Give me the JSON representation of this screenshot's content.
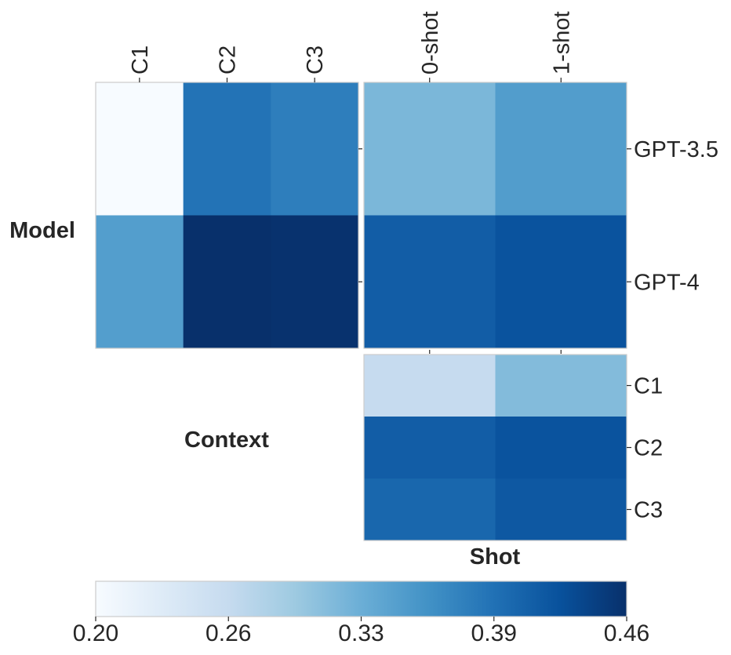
{
  "chart_data": [
    {
      "type": "heatmap",
      "id": "model_vs_context",
      "x_categories": [
        "C1",
        "C2",
        "C3"
      ],
      "y_categories": [
        "GPT-3.5",
        "GPT-4"
      ],
      "values": [
        [
          0.2,
          0.393,
          0.382
        ],
        [
          0.349,
          0.46,
          0.458
        ]
      ],
      "ylabel": "Model",
      "xlabel": "Context",
      "xtick_position": "top"
    },
    {
      "type": "heatmap",
      "id": "model_vs_shot",
      "x_categories": [
        "0-shot",
        "1-shot"
      ],
      "y_categories": [
        "GPT-3.5",
        "GPT-4"
      ],
      "values": [
        [
          0.32,
          0.35
        ],
        [
          0.415,
          0.425
        ]
      ],
      "xtick_position": "top",
      "ytick_position": "right"
    },
    {
      "type": "heatmap",
      "id": "context_vs_shot",
      "x_categories": [
        "0-shot",
        "1-shot"
      ],
      "y_categories": [
        "C1",
        "C2",
        "C3"
      ],
      "values": [
        [
          0.265,
          0.315
        ],
        [
          0.415,
          0.425
        ],
        [
          0.405,
          0.42
        ]
      ],
      "xlabel": "Shot",
      "ytick_position": "right"
    }
  ],
  "colorbar": {
    "colormap": "Blues",
    "vmin": 0.2,
    "vmax": 0.46,
    "orientation": "horizontal",
    "tick_values": [
      0.2,
      0.265,
      0.33,
      0.395,
      0.46
    ],
    "tick_labels": [
      "0.20",
      "0.26",
      "0.33",
      "0.39",
      "0.46"
    ]
  },
  "labels": {
    "model": "Model",
    "context": "Context",
    "shot": "Shot"
  }
}
